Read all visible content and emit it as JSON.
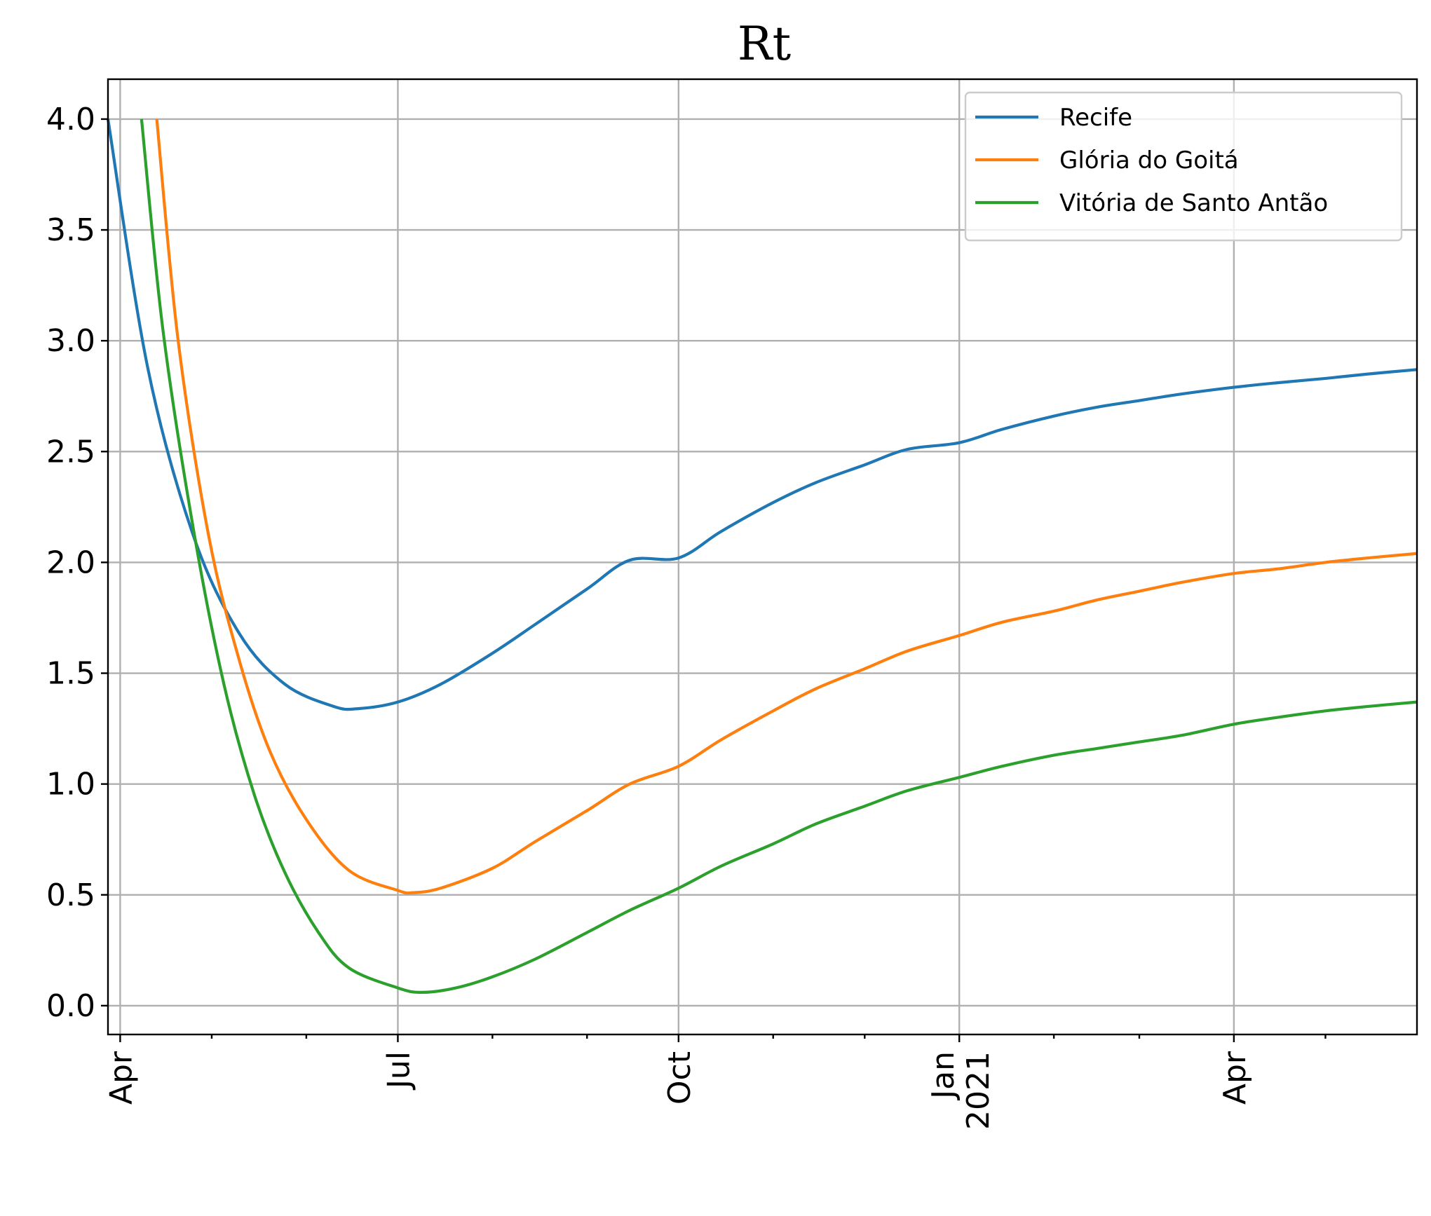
{
  "chart_data": {
    "type": "line",
    "title": "Rt",
    "xlabel": "",
    "ylabel": "",
    "x_type": "date",
    "xlim": [
      "2020-03-28",
      "2021-05-31"
    ],
    "ylim": [
      -0.13,
      4.18
    ],
    "yticks": [
      0.0,
      0.5,
      1.0,
      1.5,
      2.0,
      2.5,
      3.0,
      3.5,
      4.0
    ],
    "ytick_labels": [
      "0.0",
      "0.5",
      "1.0",
      "1.5",
      "2.0",
      "2.5",
      "3.0",
      "3.5",
      "4.0"
    ],
    "major_xticks": [
      {
        "date": "2020-04-01",
        "label": "Apr",
        "sublabel": ""
      },
      {
        "date": "2020-07-01",
        "label": "Jul",
        "sublabel": ""
      },
      {
        "date": "2020-10-01",
        "label": "Oct",
        "sublabel": ""
      },
      {
        "date": "2021-01-01",
        "label": "Jan",
        "sublabel": "2021"
      },
      {
        "date": "2021-04-01",
        "label": "Apr",
        "sublabel": ""
      }
    ],
    "minor_xticks": [
      "2020-05-01",
      "2020-06-01",
      "2020-08-01",
      "2020-09-01",
      "2020-11-01",
      "2020-12-01",
      "2021-02-01",
      "2021-03-01",
      "2021-05-01"
    ],
    "grid": true,
    "legend_position": "top-right",
    "series": [
      {
        "name": "Recife",
        "color": "#1f77b4",
        "x": [
          "2020-03-28",
          "2020-04-10",
          "2020-04-25",
          "2020-05-10",
          "2020-05-25",
          "2020-06-10",
          "2020-06-18",
          "2020-07-01",
          "2020-07-15",
          "2020-08-01",
          "2020-08-15",
          "2020-09-01",
          "2020-09-15",
          "2020-10-01",
          "2020-10-15",
          "2020-11-01",
          "2020-11-15",
          "2020-12-01",
          "2020-12-15",
          "2021-01-01",
          "2021-01-15",
          "2021-02-01",
          "2021-02-15",
          "2021-03-01",
          "2021-03-15",
          "2021-04-01",
          "2021-04-15",
          "2021-05-01",
          "2021-05-15",
          "2021-05-31"
        ],
        "y": [
          4.0,
          2.88,
          2.12,
          1.68,
          1.45,
          1.35,
          1.34,
          1.37,
          1.45,
          1.59,
          1.72,
          1.88,
          2.01,
          2.02,
          2.14,
          2.27,
          2.36,
          2.44,
          2.51,
          2.54,
          2.6,
          2.66,
          2.7,
          2.73,
          2.76,
          2.79,
          2.81,
          2.83,
          2.85,
          2.87
        ]
      },
      {
        "name": "Glória do Goitá",
        "color": "#ff7f0e",
        "x": [
          "2020-04-13",
          "2020-04-20",
          "2020-04-30",
          "2020-05-10",
          "2020-05-20",
          "2020-06-01",
          "2020-06-15",
          "2020-07-01",
          "2020-07-06",
          "2020-07-15",
          "2020-08-01",
          "2020-08-15",
          "2020-09-01",
          "2020-09-15",
          "2020-10-01",
          "2020-10-15",
          "2020-11-01",
          "2020-11-15",
          "2020-12-01",
          "2020-12-15",
          "2021-01-01",
          "2021-01-15",
          "2021-02-01",
          "2021-02-15",
          "2021-03-01",
          "2021-03-15",
          "2021-04-01",
          "2021-04-15",
          "2021-05-01",
          "2021-05-15",
          "2021-05-31"
        ],
        "y": [
          4.0,
          3.0,
          2.12,
          1.56,
          1.15,
          0.84,
          0.61,
          0.52,
          0.51,
          0.53,
          0.62,
          0.74,
          0.88,
          1.0,
          1.08,
          1.2,
          1.33,
          1.43,
          1.52,
          1.6,
          1.67,
          1.73,
          1.78,
          1.83,
          1.87,
          1.91,
          1.95,
          1.97,
          2.0,
          2.02,
          2.04
        ]
      },
      {
        "name": "Vitória de Santo Antão",
        "color": "#2ca02c",
        "x": [
          "2020-04-08",
          "2020-04-15",
          "2020-04-25",
          "2020-05-05",
          "2020-05-15",
          "2020-05-25",
          "2020-06-05",
          "2020-06-15",
          "2020-07-01",
          "2020-07-09",
          "2020-07-20",
          "2020-08-01",
          "2020-08-15",
          "2020-09-01",
          "2020-09-15",
          "2020-10-01",
          "2020-10-15",
          "2020-11-01",
          "2020-11-15",
          "2020-12-01",
          "2020-12-15",
          "2021-01-01",
          "2021-01-15",
          "2021-02-01",
          "2021-02-15",
          "2021-03-01",
          "2021-03-15",
          "2021-04-01",
          "2021-04-15",
          "2021-05-01",
          "2021-05-15",
          "2021-05-31"
        ],
        "y": [
          4.0,
          3.05,
          2.15,
          1.45,
          0.95,
          0.6,
          0.33,
          0.17,
          0.08,
          0.06,
          0.08,
          0.13,
          0.21,
          0.33,
          0.43,
          0.53,
          0.63,
          0.73,
          0.82,
          0.9,
          0.97,
          1.03,
          1.08,
          1.13,
          1.16,
          1.19,
          1.22,
          1.27,
          1.3,
          1.33,
          1.35,
          1.37
        ]
      }
    ]
  }
}
